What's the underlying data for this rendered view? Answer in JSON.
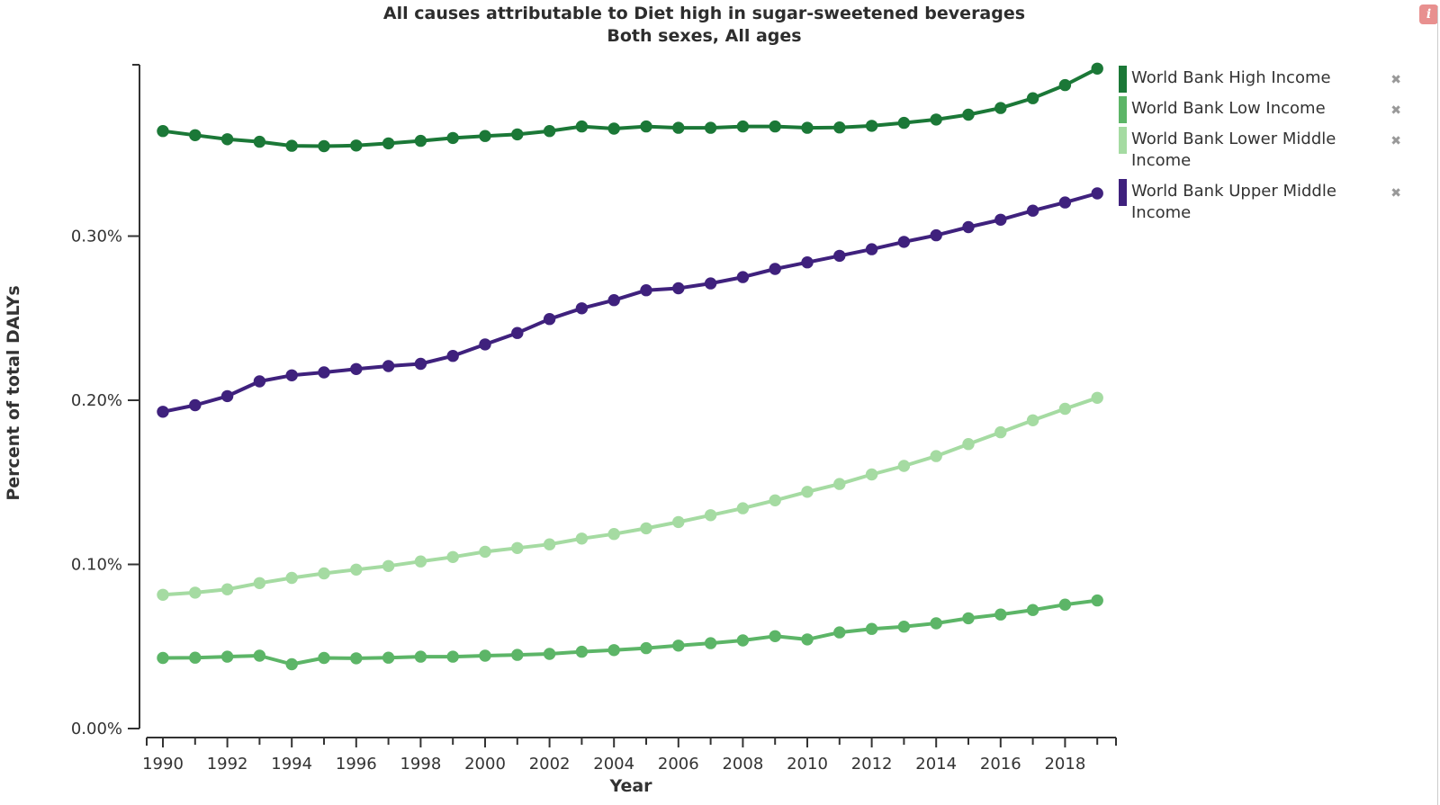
{
  "info_button": {
    "label": "i"
  },
  "legend": {
    "remove_symbol": "✖"
  },
  "chart_data": {
    "type": "line",
    "title": "All causes attributable to Diet high in sugar-sweetened beverages",
    "subtitle": "Both sexes, All ages",
    "xlabel": "Year",
    "ylabel": "Percent of total DALYs",
    "unit": "percent of total DALYs",
    "grid": false,
    "legend_position": "right",
    "ylim_percent": [
      0,
      0.404
    ],
    "y_tick_values": [
      0.0,
      0.1,
      0.2,
      0.3
    ],
    "y_tick_labels": [
      "0.00%",
      "0.10%",
      "0.20%",
      "0.30%"
    ],
    "x": [
      1990,
      1991,
      1992,
      1993,
      1994,
      1995,
      1996,
      1997,
      1998,
      1999,
      2000,
      2001,
      2002,
      2003,
      2004,
      2005,
      2006,
      2007,
      2008,
      2009,
      2010,
      2011,
      2012,
      2013,
      2014,
      2015,
      2016,
      2017,
      2018,
      2019
    ],
    "x_tick_labels": [
      "1990",
      "1992",
      "1994",
      "1996",
      "1998",
      "2000",
      "2002",
      "2004",
      "2006",
      "2008",
      "2010",
      "2012",
      "2014",
      "2016",
      "2018"
    ],
    "series": [
      {
        "name": "World Bank High Income",
        "color": "#1b7837",
        "values": [
          0.364,
          0.3615,
          0.359,
          0.3575,
          0.355,
          0.3548,
          0.3552,
          0.3565,
          0.358,
          0.3598,
          0.361,
          0.362,
          0.364,
          0.3668,
          0.3655,
          0.3668,
          0.366,
          0.366,
          0.3668,
          0.3668,
          0.366,
          0.3662,
          0.3672,
          0.369,
          0.371,
          0.374,
          0.378,
          0.384,
          0.392,
          0.402
        ]
      },
      {
        "name": "World Bank Low Income",
        "color": "#5cb567",
        "values": [
          0.043,
          0.0432,
          0.0438,
          0.0444,
          0.0392,
          0.043,
          0.0428,
          0.0432,
          0.0438,
          0.0438,
          0.0444,
          0.0449,
          0.0455,
          0.0468,
          0.0478,
          0.049,
          0.0505,
          0.052,
          0.0537,
          0.0563,
          0.0543,
          0.0586,
          0.0607,
          0.0621,
          0.0641,
          0.0672,
          0.0695,
          0.0722,
          0.0755,
          0.078
        ]
      },
      {
        "name": "World Bank Lower Middle Income",
        "color": "#a5dba2",
        "values": [
          0.0815,
          0.0828,
          0.0848,
          0.0886,
          0.0918,
          0.0945,
          0.0968,
          0.099,
          0.1018,
          0.1045,
          0.1077,
          0.11,
          0.1122,
          0.1157,
          0.1185,
          0.122,
          0.1258,
          0.13,
          0.1342,
          0.139,
          0.1442,
          0.149,
          0.1548,
          0.16,
          0.166,
          0.1733,
          0.1805,
          0.1878,
          0.1948,
          0.2015
        ]
      },
      {
        "name": "World Bank Upper Middle Income",
        "color": "#3f217d",
        "values": [
          0.193,
          0.197,
          0.2025,
          0.2115,
          0.2152,
          0.217,
          0.219,
          0.2208,
          0.2222,
          0.227,
          0.234,
          0.241,
          0.2495,
          0.256,
          0.261,
          0.267,
          0.2682,
          0.2712,
          0.275,
          0.28,
          0.284,
          0.288,
          0.292,
          0.2965,
          0.3005,
          0.3055,
          0.31,
          0.3155,
          0.3205,
          0.326
        ]
      }
    ]
  }
}
